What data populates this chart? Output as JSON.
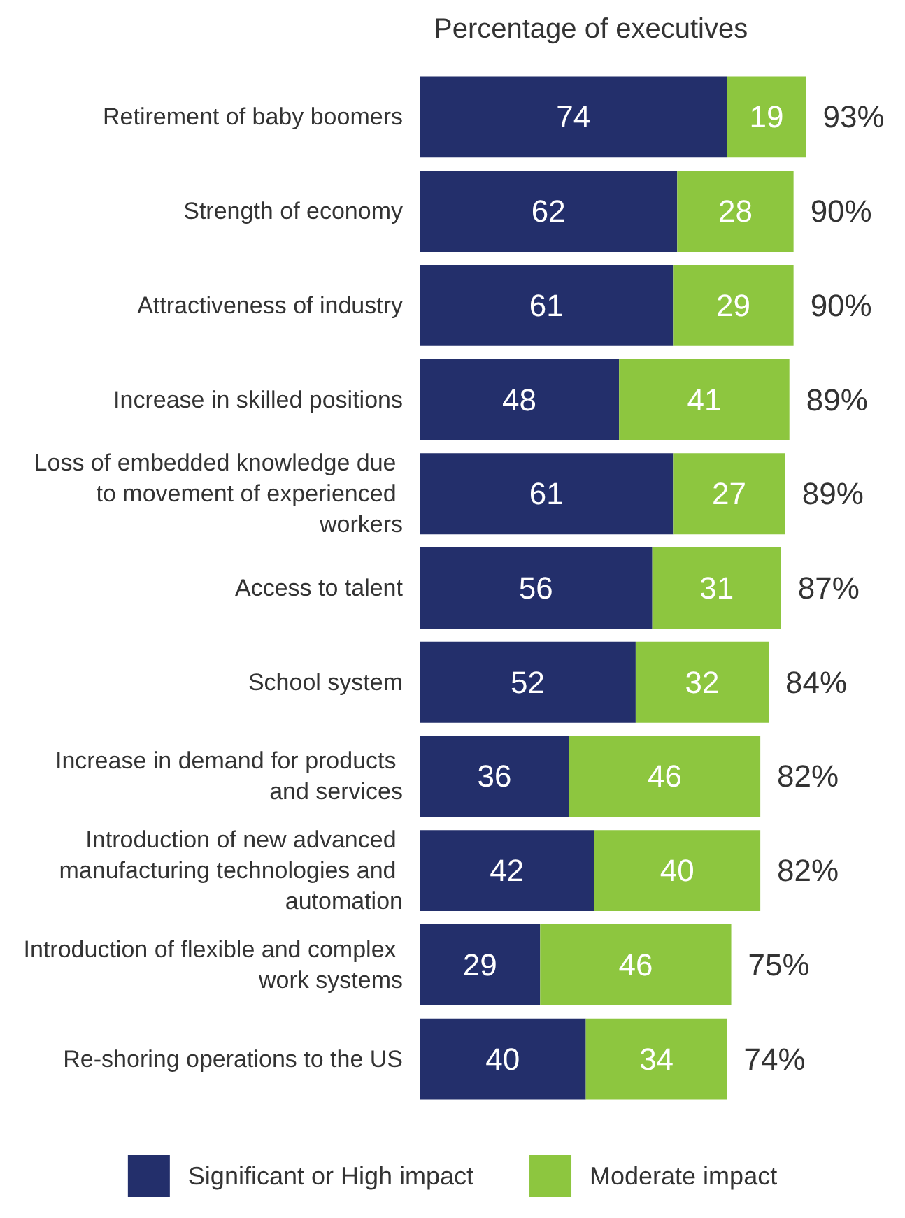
{
  "chart_data": {
    "type": "bar",
    "orientation": "horizontal",
    "stacked": true,
    "title": "Percentage of executives",
    "categories": [
      "Retirement of baby boomers",
      "Strength of economy",
      "Attractiveness of industry",
      "Increase in skilled positions",
      "Loss of embedded knowledge due to movement of experienced workers",
      "Access to talent",
      "School system",
      "Increase in demand for products and services",
      "Introduction of new advanced manufacturing technologies and automation",
      "Introduction of flexible and complex work systems",
      "Re-shoring operations to the US"
    ],
    "series": [
      {
        "name": "Significant or High impact",
        "color": "#232f6b",
        "values": [
          74,
          62,
          61,
          48,
          61,
          56,
          52,
          36,
          42,
          29,
          40
        ]
      },
      {
        "name": "Moderate impact",
        "color": "#8dc63f",
        "values": [
          19,
          28,
          29,
          41,
          27,
          31,
          32,
          46,
          40,
          46,
          34
        ]
      }
    ],
    "totals": [
      "93%",
      "90%",
      "90%",
      "89%",
      "89%",
      "87%",
      "84%",
      "82%",
      "82%",
      "75%",
      "74%"
    ],
    "data_labels": true,
    "legend": "bottom"
  }
}
